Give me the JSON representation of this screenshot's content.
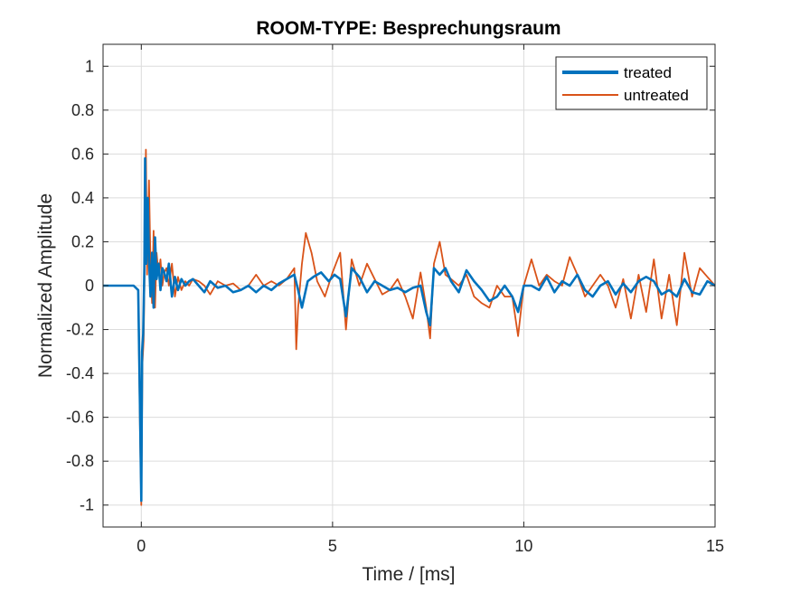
{
  "chart_data": {
    "type": "line",
    "title": "ROOM-TYPE: Besprechungsraum",
    "xlabel": "Time / [ms]",
    "ylabel": "Normalized Amplitude",
    "xlim": [
      -1,
      15
    ],
    "ylim": [
      -1.1,
      1.1
    ],
    "xticks": [
      0,
      5,
      10,
      15
    ],
    "xtick_labels": [
      "0",
      "5",
      "10",
      "15"
    ],
    "yticks": [
      -1,
      -0.8,
      -0.6,
      -0.4,
      -0.2,
      0,
      0.2,
      0.4,
      0.6,
      0.8,
      1
    ],
    "ytick_labels": [
      "-1",
      "-0.8",
      "-0.6",
      "-0.4",
      "-0.2",
      "0",
      "0.2",
      "0.4",
      "0.6",
      "0.8",
      "1"
    ],
    "grid": true,
    "legend_position": "top-right",
    "series": [
      {
        "name": "treated",
        "color": "#0072BD",
        "x": [
          -1,
          -0.2,
          -0.08,
          -0.03,
          0,
          0.02,
          0.05,
          0.08,
          0.1,
          0.13,
          0.17,
          0.2,
          0.24,
          0.28,
          0.32,
          0.36,
          0.4,
          0.45,
          0.5,
          0.55,
          0.6,
          0.66,
          0.72,
          0.8,
          0.88,
          0.96,
          1.05,
          1.15,
          1.25,
          1.35,
          1.5,
          1.65,
          1.8,
          2.0,
          2.2,
          2.4,
          2.6,
          2.8,
          3.0,
          3.2,
          3.4,
          3.6,
          3.8,
          4.0,
          4.1,
          4.2,
          4.35,
          4.5,
          4.7,
          4.9,
          5.05,
          5.2,
          5.35,
          5.5,
          5.7,
          5.9,
          6.1,
          6.3,
          6.5,
          6.7,
          6.9,
          7.1,
          7.3,
          7.45,
          7.55,
          7.65,
          7.8,
          7.95,
          8.1,
          8.3,
          8.5,
          8.7,
          8.9,
          9.1,
          9.3,
          9.5,
          9.7,
          9.85,
          10.0,
          10.2,
          10.4,
          10.6,
          10.8,
          11.0,
          11.2,
          11.4,
          11.6,
          11.8,
          12.0,
          12.2,
          12.4,
          12.6,
          12.8,
          13.0,
          13.2,
          13.4,
          13.6,
          13.8,
          14.0,
          14.2,
          14.4,
          14.6,
          14.8,
          15.0
        ],
        "y": [
          0,
          0,
          -0.02,
          -0.6,
          -0.98,
          -0.3,
          -0.22,
          0.08,
          0.58,
          0.1,
          0.4,
          0.12,
          -0.05,
          0.15,
          -0.1,
          0.22,
          0.03,
          0.1,
          -0.02,
          0.08,
          0.06,
          0.02,
          0.1,
          -0.05,
          0.04,
          -0.02,
          0.03,
          0.0,
          0.02,
          0.03,
          0.0,
          -0.03,
          0.02,
          -0.01,
          0.0,
          -0.03,
          -0.02,
          0.0,
          -0.03,
          0.0,
          -0.02,
          0.01,
          0.03,
          0.05,
          -0.02,
          -0.1,
          0.02,
          0.04,
          0.06,
          0.02,
          0.05,
          0.03,
          -0.14,
          0.08,
          0.04,
          -0.03,
          0.02,
          0.0,
          -0.02,
          -0.01,
          -0.03,
          -0.01,
          0.0,
          -0.12,
          -0.18,
          0.08,
          0.05,
          0.08,
          0.02,
          -0.03,
          0.07,
          0.02,
          -0.02,
          -0.07,
          -0.05,
          0.0,
          -0.05,
          -0.12,
          0.0,
          0.0,
          -0.02,
          0.04,
          -0.03,
          0.02,
          0.0,
          0.05,
          -0.02,
          -0.05,
          0.0,
          0.02,
          -0.04,
          0.01,
          -0.03,
          0.02,
          0.04,
          0.02,
          -0.04,
          -0.02,
          -0.05,
          0.03,
          -0.03,
          -0.04,
          0.02,
          0.0
        ]
      },
      {
        "name": "untreated",
        "color": "#D95319",
        "x": [
          -1,
          -0.2,
          -0.08,
          -0.03,
          0,
          0.03,
          0.06,
          0.09,
          0.12,
          0.15,
          0.2,
          0.24,
          0.28,
          0.32,
          0.36,
          0.4,
          0.45,
          0.5,
          0.55,
          0.6,
          0.66,
          0.72,
          0.8,
          0.88,
          0.96,
          1.05,
          1.15,
          1.25,
          1.35,
          1.5,
          1.65,
          1.8,
          2.0,
          2.2,
          2.4,
          2.6,
          2.8,
          3.0,
          3.2,
          3.4,
          3.6,
          3.8,
          4.0,
          4.05,
          4.1,
          4.2,
          4.3,
          4.45,
          4.6,
          4.8,
          5.0,
          5.2,
          5.35,
          5.5,
          5.7,
          5.9,
          6.1,
          6.3,
          6.5,
          6.7,
          6.9,
          7.1,
          7.3,
          7.45,
          7.55,
          7.65,
          7.8,
          7.95,
          8.1,
          8.3,
          8.5,
          8.7,
          8.9,
          9.1,
          9.3,
          9.5,
          9.7,
          9.85,
          10.0,
          10.2,
          10.4,
          10.6,
          10.8,
          11.0,
          11.2,
          11.4,
          11.6,
          11.8,
          12.0,
          12.2,
          12.4,
          12.6,
          12.8,
          13.0,
          13.2,
          13.4,
          13.6,
          13.8,
          14.0,
          14.2,
          14.4,
          14.6,
          14.8,
          15.0
        ],
        "y": [
          0,
          0,
          -0.02,
          -0.7,
          -1.0,
          -0.35,
          -0.25,
          0.1,
          0.62,
          0.05,
          0.48,
          0.1,
          -0.08,
          0.25,
          -0.1,
          0.15,
          0.05,
          0.12,
          0.0,
          0.06,
          0.08,
          0.0,
          0.1,
          -0.05,
          0.04,
          -0.02,
          0.02,
          0.0,
          0.03,
          0.02,
          0.0,
          -0.04,
          0.02,
          0.0,
          0.01,
          -0.02,
          0.0,
          0.05,
          0.0,
          0.02,
          0.0,
          0.03,
          0.08,
          -0.29,
          -0.1,
          0.1,
          0.24,
          0.15,
          0.02,
          -0.05,
          0.06,
          0.15,
          -0.2,
          0.12,
          0.0,
          0.1,
          0.03,
          -0.04,
          -0.02,
          0.03,
          -0.05,
          -0.15,
          0.06,
          -0.1,
          -0.24,
          0.1,
          0.2,
          0.05,
          0.03,
          0.0,
          0.05,
          -0.05,
          -0.08,
          -0.1,
          0.0,
          -0.05,
          -0.05,
          -0.23,
          0.0,
          0.12,
          0.0,
          0.05,
          0.02,
          0.0,
          0.13,
          0.05,
          -0.05,
          0.0,
          0.05,
          0.0,
          -0.1,
          0.03,
          -0.15,
          0.05,
          -0.12,
          0.12,
          -0.15,
          0.05,
          -0.18,
          0.15,
          -0.05,
          0.08,
          0.04,
          0.0
        ]
      }
    ]
  }
}
